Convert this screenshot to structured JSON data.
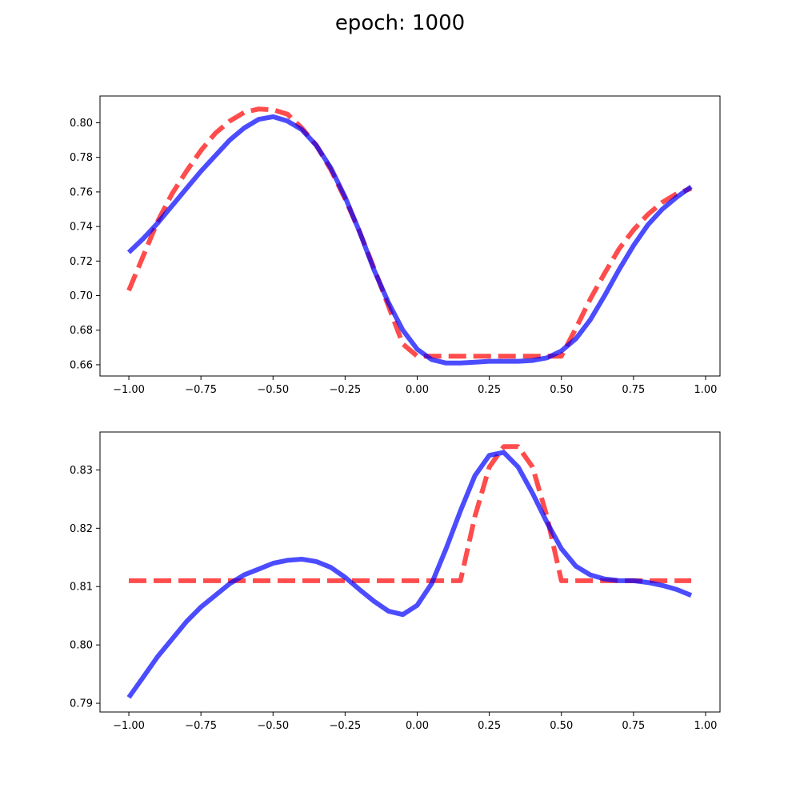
{
  "figure": {
    "title": "epoch: 1000"
  },
  "chart_data": [
    {
      "type": "line",
      "title": "",
      "xlabel": "",
      "ylabel": "",
      "xlim": [
        -1.1,
        1.05
      ],
      "ylim": [
        0.6535,
        0.8155
      ],
      "xticks": [
        -1.0,
        -0.75,
        -0.5,
        -0.25,
        0.0,
        0.25,
        0.5,
        0.75,
        1.0
      ],
      "xtick_labels": [
        "−1.00",
        "−0.75",
        "−0.50",
        "−0.25",
        "0.00",
        "0.25",
        "0.50",
        "0.75",
        "1.00"
      ],
      "yticks": [
        0.66,
        0.68,
        0.7,
        0.72,
        0.74,
        0.76,
        0.78,
        0.8
      ],
      "ytick_labels": [
        "0.66",
        "0.68",
        "0.70",
        "0.72",
        "0.74",
        "0.76",
        "0.78",
        "0.80"
      ],
      "grid": false,
      "series": [
        {
          "style": "dashed",
          "color": "#ff0000",
          "x": [
            -1.0,
            -0.95,
            -0.9,
            -0.85,
            -0.8,
            -0.75,
            -0.7,
            -0.65,
            -0.6,
            -0.55,
            -0.5,
            -0.45,
            -0.4,
            -0.35,
            -0.3,
            -0.25,
            -0.2,
            -0.15,
            -0.1,
            -0.05,
            0.0,
            0.05,
            0.1,
            0.15,
            0.2,
            0.25,
            0.3,
            0.35,
            0.4,
            0.45,
            0.5,
            0.55,
            0.6,
            0.65,
            0.7,
            0.75,
            0.8,
            0.85,
            0.9,
            0.95
          ],
          "y": [
            0.703,
            0.723,
            0.743,
            0.759,
            0.772,
            0.784,
            0.794,
            0.801,
            0.806,
            0.808,
            0.8075,
            0.805,
            0.797,
            0.787,
            0.773,
            0.756,
            0.737,
            0.716,
            0.694,
            0.672,
            0.665,
            0.665,
            0.665,
            0.665,
            0.665,
            0.665,
            0.665,
            0.665,
            0.665,
            0.665,
            0.665,
            0.681,
            0.698,
            0.713,
            0.727,
            0.738,
            0.747,
            0.754,
            0.759,
            0.762
          ]
        },
        {
          "style": "solid",
          "color": "#0000ff",
          "x": [
            -1.0,
            -0.95,
            -0.9,
            -0.85,
            -0.8,
            -0.75,
            -0.7,
            -0.65,
            -0.6,
            -0.55,
            -0.5,
            -0.45,
            -0.4,
            -0.35,
            -0.3,
            -0.25,
            -0.2,
            -0.15,
            -0.1,
            -0.05,
            0.0,
            0.05,
            0.1,
            0.15,
            0.2,
            0.25,
            0.3,
            0.35,
            0.4,
            0.45,
            0.5,
            0.55,
            0.6,
            0.65,
            0.7,
            0.75,
            0.8,
            0.85,
            0.9,
            0.95
          ],
          "y": [
            0.725,
            0.733,
            0.742,
            0.752,
            0.762,
            0.772,
            0.781,
            0.79,
            0.797,
            0.802,
            0.8035,
            0.801,
            0.796,
            0.787,
            0.774,
            0.757,
            0.737,
            0.715,
            0.696,
            0.68,
            0.669,
            0.663,
            0.661,
            0.661,
            0.6615,
            0.662,
            0.662,
            0.662,
            0.6625,
            0.664,
            0.668,
            0.675,
            0.686,
            0.7,
            0.715,
            0.729,
            0.741,
            0.75,
            0.757,
            0.763
          ]
        }
      ]
    },
    {
      "type": "line",
      "title": "",
      "xlabel": "",
      "ylabel": "",
      "xlim": [
        -1.1,
        1.05
      ],
      "ylim": [
        0.7885,
        0.8365
      ],
      "xticks": [
        -1.0,
        -0.75,
        -0.5,
        -0.25,
        0.0,
        0.25,
        0.5,
        0.75,
        1.0
      ],
      "xtick_labels": [
        "−1.00",
        "−0.75",
        "−0.50",
        "−0.25",
        "0.00",
        "0.25",
        "0.50",
        "0.75",
        "1.00"
      ],
      "yticks": [
        0.79,
        0.8,
        0.81,
        0.82,
        0.83
      ],
      "ytick_labels": [
        "0.79",
        "0.80",
        "0.81",
        "0.82",
        "0.83"
      ],
      "grid": false,
      "series": [
        {
          "style": "dashed",
          "color": "#ff0000",
          "x": [
            -1.0,
            -0.95,
            -0.9,
            -0.85,
            -0.8,
            -0.75,
            -0.7,
            -0.65,
            -0.6,
            -0.55,
            -0.5,
            -0.45,
            -0.4,
            -0.35,
            -0.3,
            -0.25,
            -0.2,
            -0.15,
            -0.1,
            -0.05,
            0.0,
            0.05,
            0.1,
            0.15,
            0.2,
            0.25,
            0.3,
            0.35,
            0.4,
            0.45,
            0.5,
            0.55,
            0.6,
            0.65,
            0.7,
            0.75,
            0.8,
            0.85,
            0.9,
            0.95
          ],
          "y": [
            0.811,
            0.811,
            0.811,
            0.811,
            0.811,
            0.811,
            0.811,
            0.811,
            0.811,
            0.811,
            0.811,
            0.811,
            0.811,
            0.811,
            0.811,
            0.811,
            0.811,
            0.811,
            0.811,
            0.811,
            0.811,
            0.811,
            0.811,
            0.811,
            0.822,
            0.8305,
            0.834,
            0.834,
            0.8305,
            0.822,
            0.811,
            0.811,
            0.811,
            0.811,
            0.811,
            0.811,
            0.811,
            0.811,
            0.811,
            0.811
          ]
        },
        {
          "style": "solid",
          "color": "#0000ff",
          "x": [
            -1.0,
            -0.95,
            -0.9,
            -0.85,
            -0.8,
            -0.75,
            -0.7,
            -0.65,
            -0.6,
            -0.55,
            -0.5,
            -0.45,
            -0.4,
            -0.35,
            -0.3,
            -0.25,
            -0.2,
            -0.15,
            -0.1,
            -0.05,
            0.0,
            0.05,
            0.1,
            0.15,
            0.2,
            0.25,
            0.3,
            0.35,
            0.4,
            0.45,
            0.5,
            0.55,
            0.6,
            0.65,
            0.7,
            0.75,
            0.8,
            0.85,
            0.9,
            0.95
          ],
          "y": [
            0.791,
            0.7945,
            0.798,
            0.801,
            0.804,
            0.8065,
            0.8085,
            0.8105,
            0.812,
            0.813,
            0.814,
            0.8145,
            0.8147,
            0.8143,
            0.8133,
            0.8116,
            0.8095,
            0.8075,
            0.8058,
            0.8052,
            0.8068,
            0.8105,
            0.8165,
            0.823,
            0.829,
            0.8325,
            0.833,
            0.8305,
            0.826,
            0.821,
            0.8165,
            0.8135,
            0.812,
            0.8113,
            0.811,
            0.811,
            0.8107,
            0.8102,
            0.8095,
            0.8085
          ]
        }
      ]
    }
  ]
}
